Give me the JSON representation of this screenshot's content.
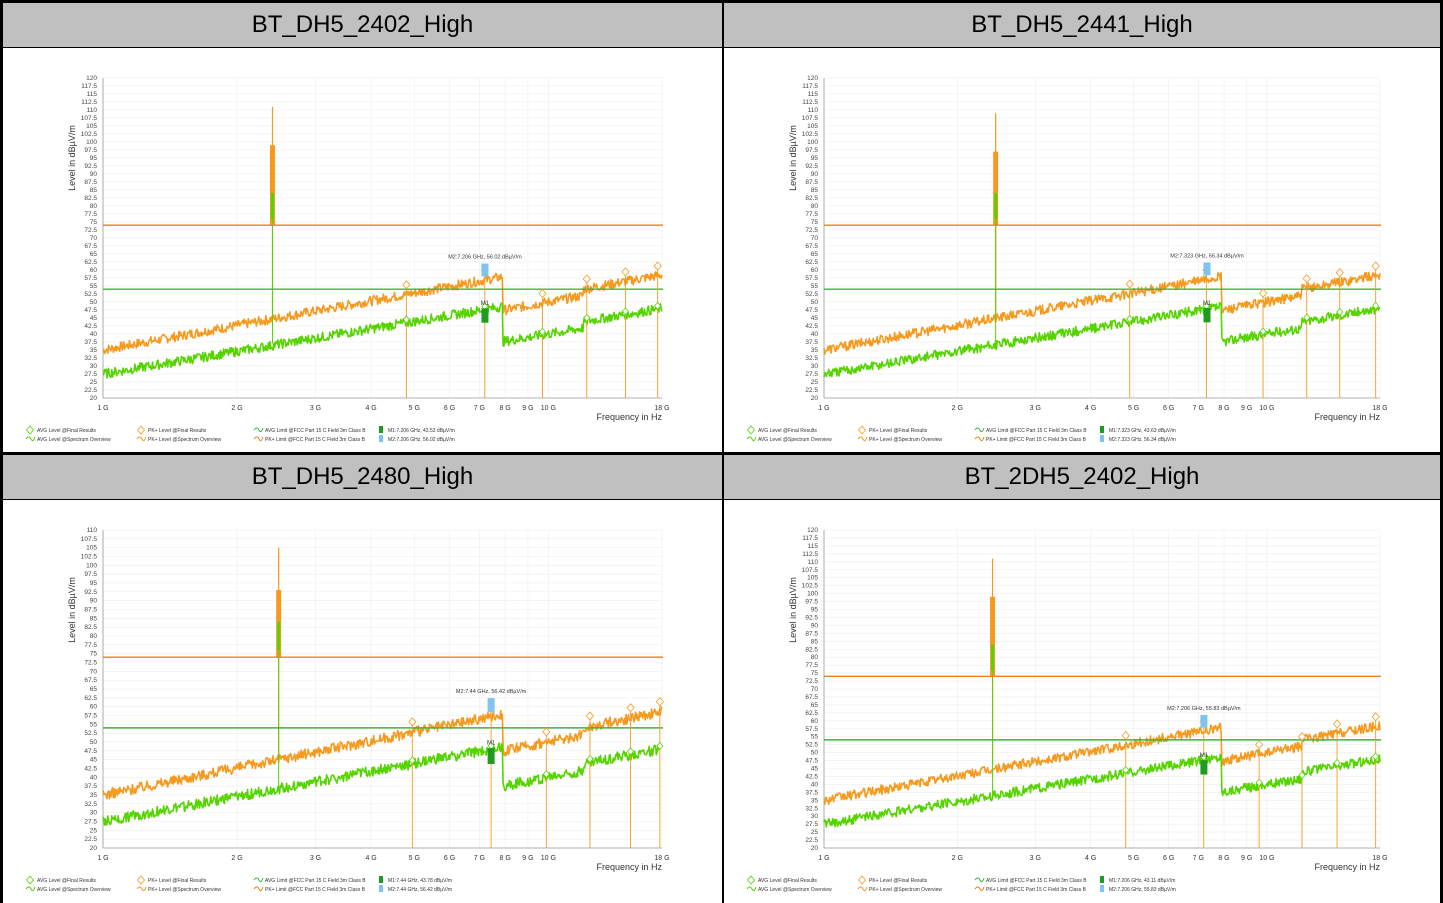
{
  "colors": {
    "avg": "#55d400",
    "pk": "#f59a1e",
    "avg_limit": "#3cb43c",
    "pk_limit": "#e8821a",
    "m1": "#1f9c1f",
    "m2": "#7fc3f0",
    "header_bg": "#c0c0c0"
  },
  "legend_labels": {
    "avg_final": "AVG Level @Final Results",
    "avg_overview": "AVG Level @Spectrum Overview",
    "pk_final": "PK+ Level @Final Results",
    "pk_overview": "PK+ Level @Spectrum Overview",
    "avg_limit": "AVG Limit @FCC Part 15 C Field 3m Class B",
    "pk_limit": "PK+ Limit @FCC Part 15 C Field 3m Class B"
  },
  "chart_data": [
    {
      "type": "line",
      "title": "BT_DH5_2402_High",
      "xlabel": "Frequency in Hz",
      "ylabel": "Level in dBµV/m",
      "x_scale": "log",
      "xlim": [
        "1 GHz",
        "18 GHz"
      ],
      "x_ticks": [
        "1 G",
        "2 G",
        "3 G",
        "4 G",
        "5 G",
        "6 G",
        "7 G",
        "8 G",
        "9 G",
        "10 G",
        "18 G"
      ],
      "ylim": [
        20,
        120
      ],
      "avg_limit_dBuV_m": 54,
      "pk_limit_dBuV_m": 74,
      "carrier_GHz": 2.402,
      "carrier_peak_dBuV_m": 111,
      "markers": [
        {
          "name": "M1",
          "freq": "7.206 GHz",
          "level": "43.53 dBµV/m",
          "label": "M1:7.206 GHz, 43.53 dBµV/m"
        },
        {
          "name": "M2",
          "freq": "7.206 GHz",
          "level": "56.02 dBµV/m",
          "label": "M2:7.206 GHz, 56.02 dBµV/m"
        }
      ],
      "final_results_GHz": [
        4.8,
        7.2,
        9.7,
        12.2,
        14.9,
        17.6
      ]
    },
    {
      "type": "line",
      "title": "BT_DH5_2441_High",
      "xlabel": "Frequency in Hz",
      "ylabel": "Level in dBµV/m",
      "x_scale": "log",
      "xlim": [
        "1 GHz",
        "18 GHz"
      ],
      "x_ticks": [
        "1 G",
        "2 G",
        "3 G",
        "4 G",
        "5 G",
        "6 G",
        "7 G",
        "8 G",
        "9 G",
        "10 G",
        "18 G"
      ],
      "ylim": [
        20,
        120
      ],
      "avg_limit_dBuV_m": 54,
      "pk_limit_dBuV_m": 74,
      "carrier_GHz": 2.441,
      "carrier_peak_dBuV_m": 109,
      "markers": [
        {
          "name": "M1",
          "freq": "7.323 GHz",
          "level": "43.63 dBµV/m",
          "label": "M1:7.323 GHz, 43.63 dBµV/m"
        },
        {
          "name": "M2",
          "freq": "7.323 GHz",
          "level": "56.34 dBµV/m",
          "label": "M2:7.323 GHz, 56.34 dBµV/m"
        }
      ],
      "final_results_GHz": [
        4.9,
        7.3,
        9.8,
        12.3,
        14.6,
        17.6
      ]
    },
    {
      "type": "line",
      "title": "BT_DH5_2480_High",
      "xlabel": "Frequency in Hz",
      "ylabel": "Level in dBµV/m",
      "x_scale": "log",
      "xlim": [
        "1 GHz",
        "18 GHz"
      ],
      "x_ticks": [
        "1 G",
        "2 G",
        "3 G",
        "4 G",
        "5 G",
        "6 G",
        "7 G",
        "8 G",
        "9 G",
        "10 G",
        "18 G"
      ],
      "ylim": [
        20,
        110
      ],
      "avg_limit_dBuV_m": 54,
      "pk_limit_dBuV_m": 74,
      "carrier_GHz": 2.48,
      "carrier_peak_dBuV_m": 105,
      "markers": [
        {
          "name": "M1",
          "freq": "7.44 GHz",
          "level": "43.78 dBµV/m",
          "label": "M1:7.44 GHz, 43.78 dBµV/m"
        },
        {
          "name": "M2",
          "freq": "7.44 GHz",
          "level": "56.42 dBµV/m",
          "label": "M2:7.44 GHz, 56.42 dBµV/m"
        }
      ],
      "final_results_GHz": [
        4.95,
        7.44,
        9.9,
        12.4,
        15.3,
        17.8
      ]
    },
    {
      "type": "line",
      "title": "BT_2DH5_2402_High",
      "xlabel": "Frequency in Hz",
      "ylabel": "Level in dBµV/m",
      "x_scale": "log",
      "xlim": [
        "1 GHz",
        "18 GHz"
      ],
      "x_ticks": [
        "1 G",
        "2 G",
        "3 G",
        "4 G",
        "5 G",
        "6 G",
        "7 G",
        "8 G",
        "9 G",
        "10 G",
        "18 G"
      ],
      "ylim": [
        20,
        120
      ],
      "avg_limit_dBuV_m": 54,
      "pk_limit_dBuV_m": 74,
      "carrier_GHz": 2.402,
      "carrier_peak_dBuV_m": 111,
      "markers": [
        {
          "name": "M1",
          "freq": "7.206 GHz",
          "level": "43.11 dBµV/m",
          "label": "M1:7.206 GHz, 43.11 dBµV/m"
        },
        {
          "name": "M2",
          "freq": "7.206 GHz",
          "level": "55.83 dBµV/m",
          "label": "M2:7.206 GHz, 55.83 dBµV/m"
        }
      ],
      "final_results_GHz": [
        4.8,
        7.2,
        9.6,
        12.0,
        14.4,
        17.6
      ]
    }
  ]
}
